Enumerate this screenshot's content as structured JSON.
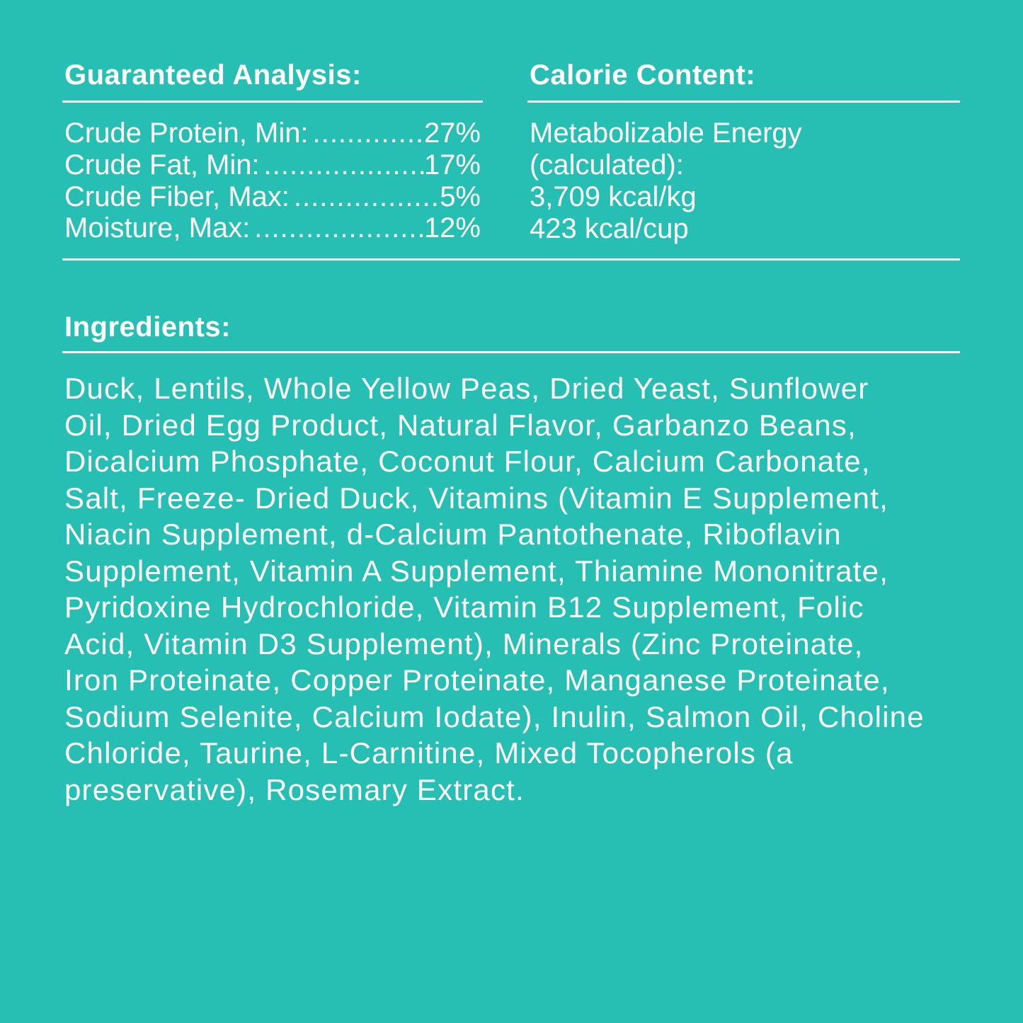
{
  "guaranteed_analysis": {
    "title": "Guaranteed Analysis:",
    "rows": [
      {
        "label": "Crude Protein, Min:",
        "value": "27%"
      },
      {
        "label": "Crude Fat, Min:",
        "value": "17%"
      },
      {
        "label": "Crude Fiber, Max:",
        "value": "5%"
      },
      {
        "label": "Moisture, Max:",
        "value": "12%"
      }
    ]
  },
  "calorie_content": {
    "title": "Calorie Content:",
    "lines": [
      "Metabolizable Energy",
      "(calculated):",
      "3,709 kcal/kg",
      "423 kcal/cup"
    ]
  },
  "ingredients": {
    "title": "Ingredients:",
    "lines": [
      "Duck, Lentils, Whole Yellow Peas, Dried Yeast, Sunflower",
      "Oil, Dried Egg Product, Natural Flavor, Garbanzo Beans,",
      "Dicalcium Phosphate, Coconut Flour, Calcium Carbonate,",
      "Salt, Freeze- Dried Duck, Vitamins (Vitamin E Supplement,",
      "Niacin Supplement, d-Calcium Pantothenate, Riboflavin",
      "Supplement, Vitamin A Supplement, Thiamine Mononitrate,",
      "Pyridoxine Hydrochloride, Vitamin B12 Supplement, Folic",
      "Acid, Vitamin D3 Supplement), Minerals (Zinc Proteinate,",
      "Iron Proteinate, Copper Proteinate, Manganese Proteinate,",
      "Sodium Selenite, Calcium Iodate), Inulin, Salmon Oil, Choline",
      "Chloride, Taurine, L-Carnitine, Mixed Tocopherols (a",
      "preservative), Rosemary Extract."
    ]
  },
  "colors": {
    "background": "#27BEB3",
    "text": "#FFFFFF"
  }
}
